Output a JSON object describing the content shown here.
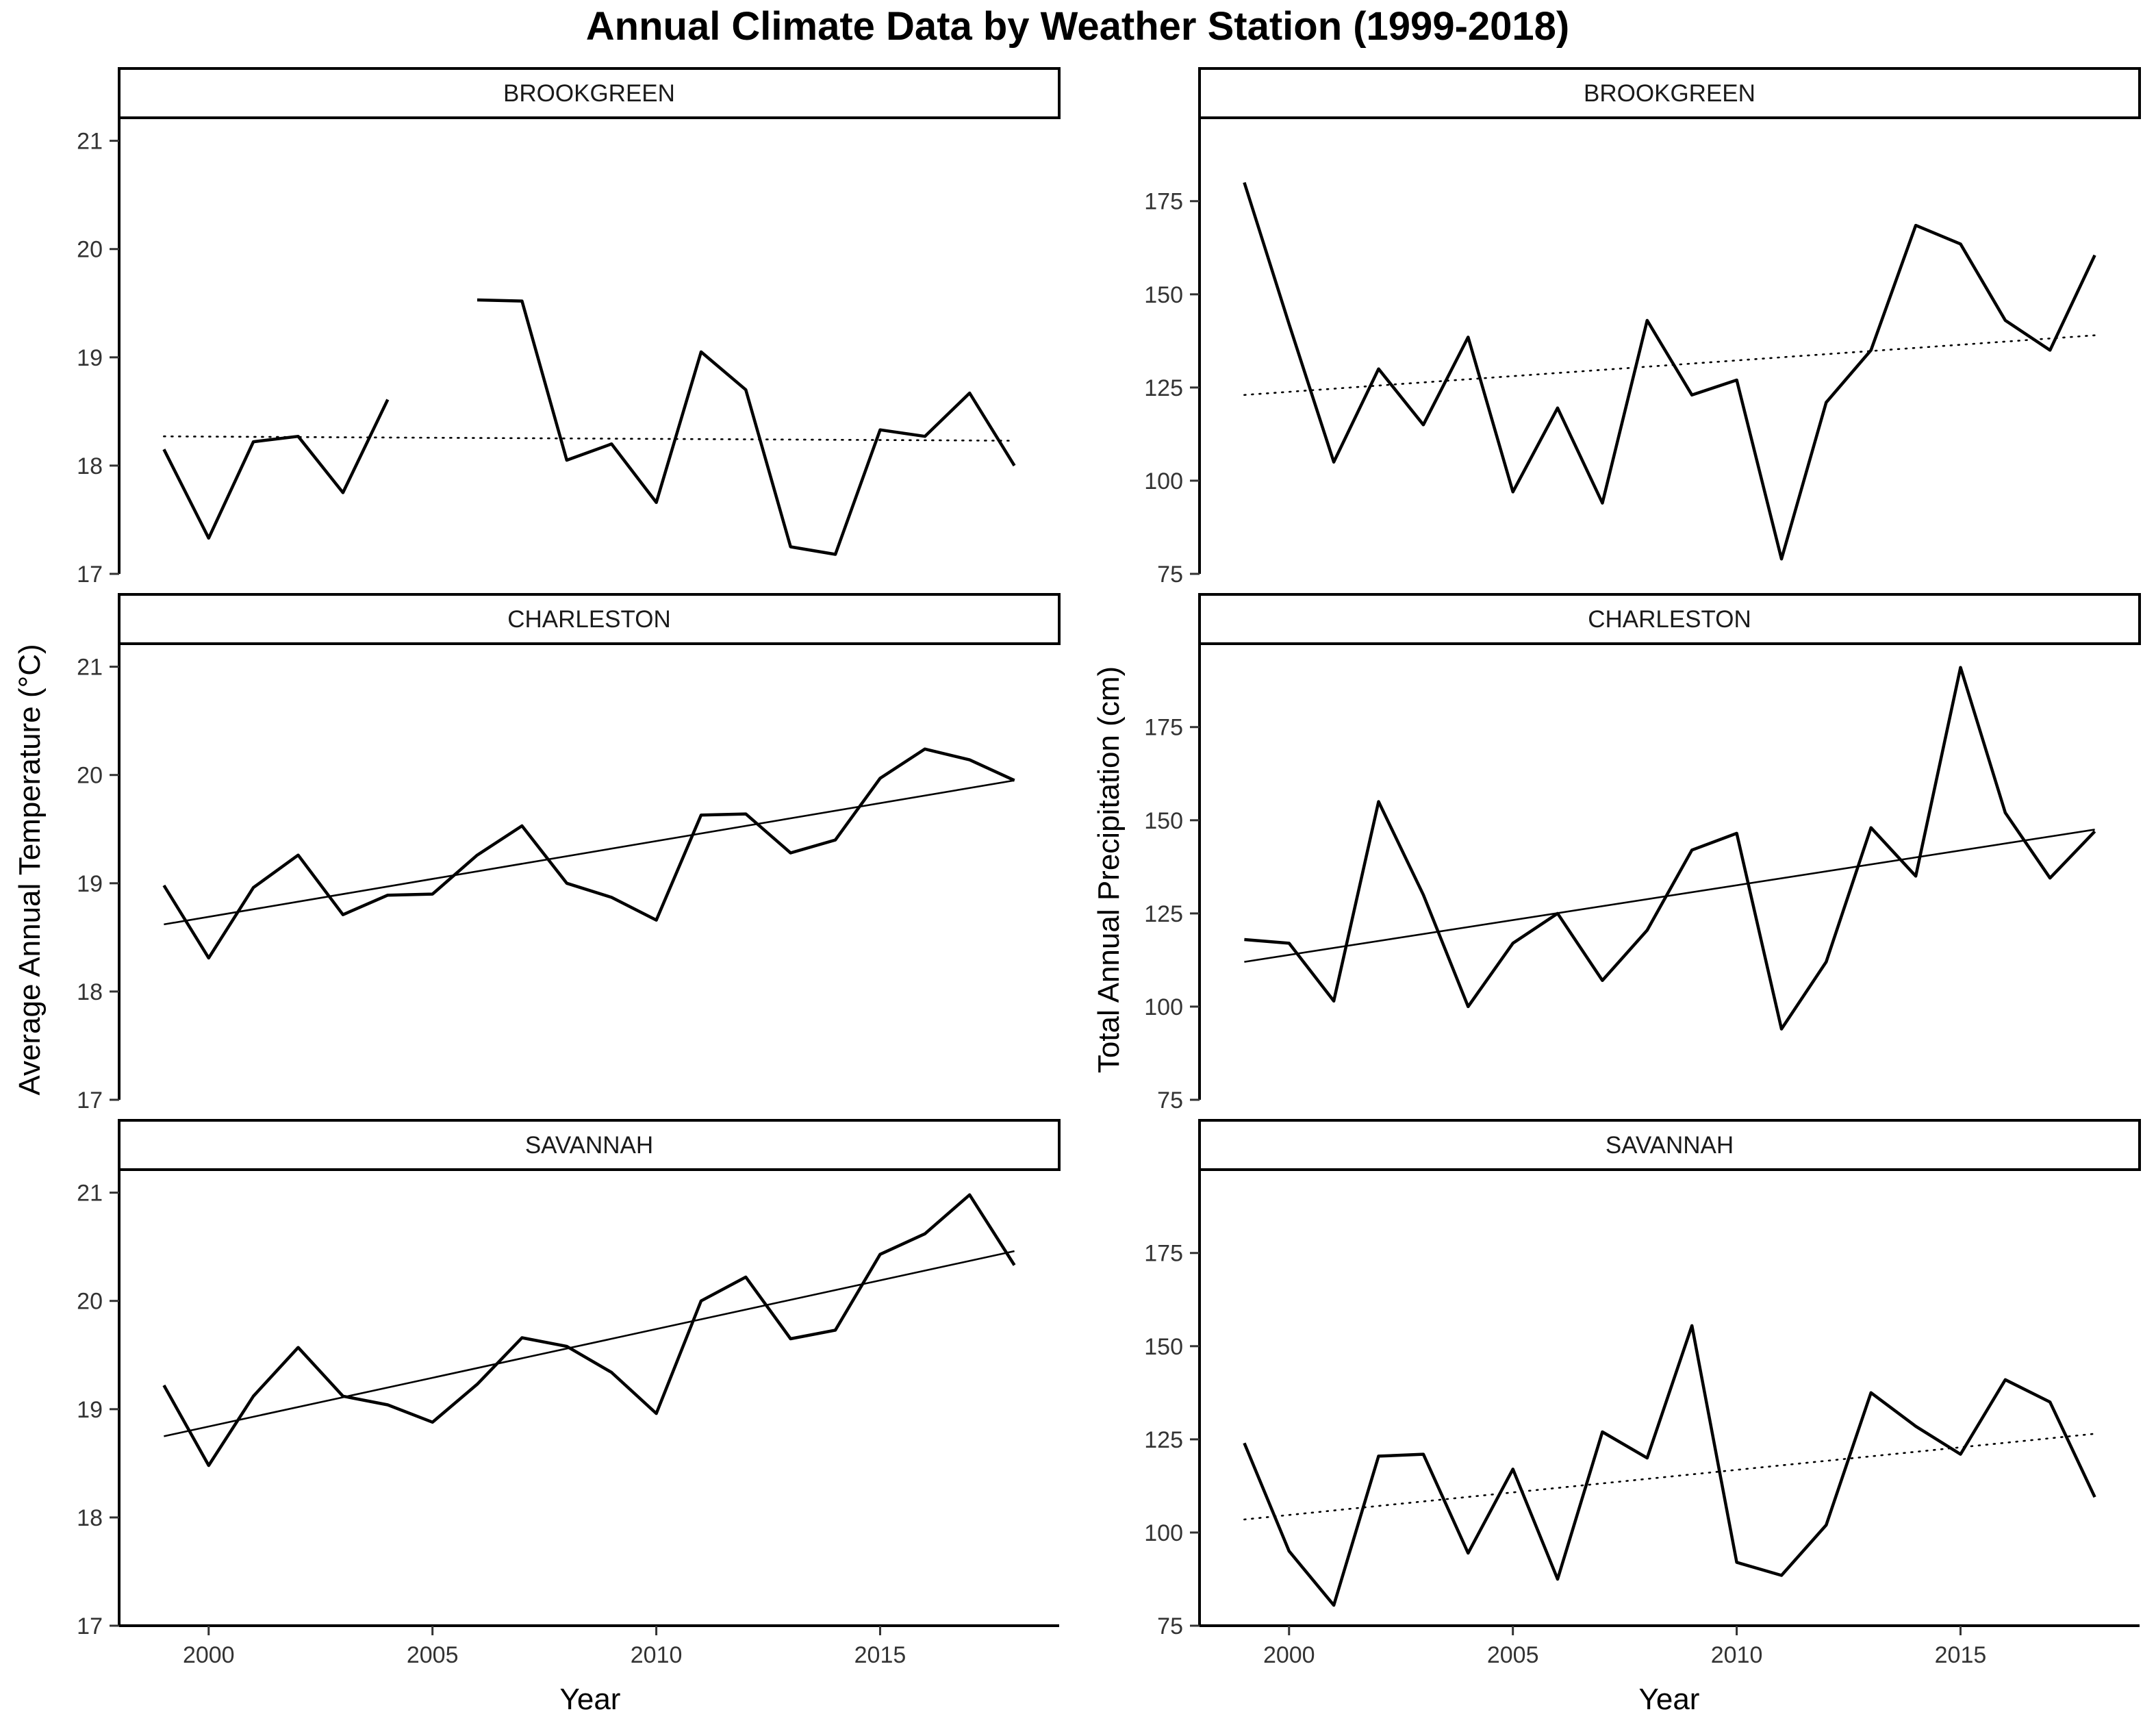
{
  "title": "Annual Climate Data by Weather Station (1999-2018)",
  "chart_data": {
    "type": "line",
    "facet_rows": [
      "BROOKGREEN",
      "CHARLESTON",
      "SAVANNAH"
    ],
    "x": [
      1999,
      2000,
      2001,
      2002,
      2003,
      2004,
      2005,
      2006,
      2007,
      2008,
      2009,
      2010,
      2011,
      2012,
      2013,
      2014,
      2015,
      2016,
      2017,
      2018
    ],
    "xlabel": "Year",
    "xlim": [
      1998,
      2019
    ],
    "xticks": [
      2000,
      2005,
      2010,
      2015
    ],
    "panels": [
      {
        "column": "temperature",
        "ylabel": "Average Annual Temperature (°C)",
        "ylim": [
          17,
          21.2
        ],
        "yticks": [
          17,
          18,
          19,
          20,
          21
        ],
        "stations": [
          {
            "name": "BROOKGREEN",
            "values": [
              18.15,
              17.33,
              18.22,
              18.27,
              17.75,
              18.61,
              null,
              19.53,
              19.52,
              18.05,
              18.2,
              17.66,
              19.05,
              18.7,
              17.25,
              17.18,
              18.33,
              18.27,
              18.67,
              18.0
            ],
            "trend": {
              "style": "dotted",
              "start": 18.27,
              "end": 18.23
            }
          },
          {
            "name": "CHARLESTON",
            "values": [
              18.98,
              18.31,
              18.96,
              19.26,
              18.71,
              18.89,
              18.9,
              19.26,
              19.53,
              19.0,
              18.87,
              18.66,
              19.63,
              19.64,
              19.28,
              19.4,
              19.97,
              20.24,
              20.14,
              19.95
            ],
            "trend": {
              "style": "solid",
              "start": 18.62,
              "end": 19.95
            }
          },
          {
            "name": "SAVANNAH",
            "values": [
              19.22,
              18.48,
              19.12,
              19.57,
              19.12,
              19.04,
              18.88,
              19.23,
              19.66,
              19.58,
              19.34,
              18.96,
              20.0,
              20.22,
              19.65,
              19.73,
              20.43,
              20.62,
              20.98,
              20.33
            ],
            "trend": {
              "style": "solid",
              "start": 18.75,
              "end": 20.46
            }
          }
        ]
      },
      {
        "column": "precipitation",
        "ylabel": "Total Annual Precipitation (cm)",
        "ylim": [
          75,
          197
        ],
        "yticks": [
          75,
          100,
          125,
          150,
          175
        ],
        "stations": [
          {
            "name": "BROOKGREEN",
            "values": [
              180,
              142,
              105,
              130,
              115,
              138.5,
              97,
              119.5,
              94,
              143,
              123,
              127,
              79,
              121,
              135,
              168.5,
              163.5,
              143,
              135,
              160.5
            ],
            "trend": {
              "style": "dotted",
              "start": 123,
              "end": 139
            }
          },
          {
            "name": "CHARLESTON",
            "values": [
              118,
              117,
              101.5,
              155,
              130,
              100,
              117,
              125,
              107,
              120.5,
              142,
              146.5,
              94,
              112,
              148,
              135,
              191,
              152,
              134.5,
              147
            ],
            "trend": {
              "style": "solid",
              "start": 112,
              "end": 147.5
            }
          },
          {
            "name": "SAVANNAH",
            "values": [
              124,
              95,
              80.5,
              120.5,
              121,
              94.5,
              117,
              87.5,
              127,
              120,
              155.5,
              92,
              88.5,
              102,
              137.5,
              128.5,
              121,
              141,
              135,
              109.5
            ],
            "trend": {
              "style": "dotted",
              "start": 103.5,
              "end": 126.5
            }
          }
        ]
      }
    ]
  }
}
